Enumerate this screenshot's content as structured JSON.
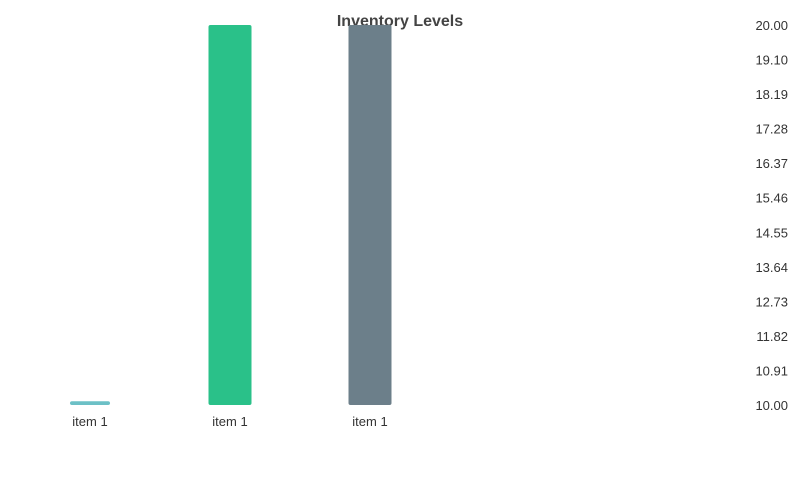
{
  "chart_data": {
    "type": "bar",
    "title": "Inventory Levels",
    "categories": [
      "item 1",
      "item 1",
      "item 1"
    ],
    "values": [
      10.1,
      20.0,
      20.0
    ],
    "colors": [
      "#6cc0c6",
      "#2ac189",
      "#6c7f8a"
    ],
    "ylim": [
      10.0,
      20.0
    ],
    "y_ticks": [
      "10.00",
      "10.91",
      "11.82",
      "12.73",
      "13.64",
      "14.55",
      "15.46",
      "16.37",
      "17.28",
      "18.19",
      "19.10",
      "20.00"
    ],
    "y_axis_position": "right",
    "grid": false,
    "legend": "none"
  }
}
